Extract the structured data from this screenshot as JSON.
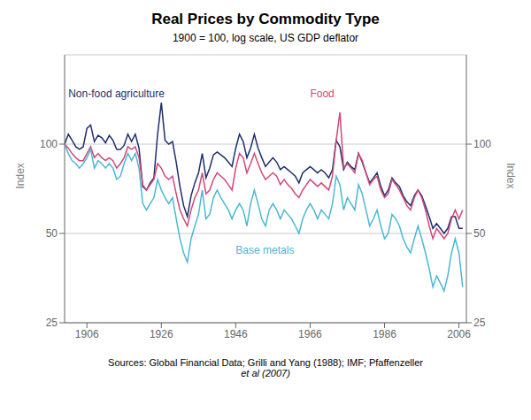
{
  "chart_data": {
    "type": "line",
    "title": "Real Prices by Commodity Type",
    "subtitle": "1900 = 100, log scale, US GDP deflator",
    "ylabel": "Index",
    "y2label": "Index",
    "source": [
      "Sources: Global Financial Data; Grilli and Yang (1988); IMF; Pfaffenzeller",
      "et al (2007)"
    ],
    "log": "y",
    "grid": "y",
    "ylim": [
      25,
      200
    ],
    "yticks": [
      25,
      50,
      100
    ],
    "y2lim": [
      25,
      200
    ],
    "y2ticks": [
      25,
      50,
      100
    ],
    "xlim": [
      1900,
      2008
    ],
    "xticks": [
      1906,
      1926,
      1946,
      1966,
      1986,
      2006
    ],
    "annotations": [
      {
        "text": "Non-food agriculture",
        "x": 1901,
        "y": 148,
        "color": "#1c2f6e"
      },
      {
        "text": "Food",
        "x": 1966,
        "y": 148,
        "color": "#d4477a"
      },
      {
        "text": "Base metals",
        "x": 1946,
        "y": 44,
        "color": "#4ab8d4"
      }
    ],
    "x": [
      1900,
      1901,
      1902,
      1903,
      1904,
      1905,
      1906,
      1907,
      1908,
      1909,
      1910,
      1911,
      1912,
      1913,
      1914,
      1915,
      1916,
      1917,
      1918,
      1919,
      1920,
      1921,
      1922,
      1923,
      1924,
      1925,
      1926,
      1927,
      1928,
      1929,
      1930,
      1931,
      1932,
      1933,
      1934,
      1935,
      1936,
      1937,
      1938,
      1939,
      1940,
      1941,
      1942,
      1943,
      1944,
      1945,
      1946,
      1947,
      1948,
      1949,
      1950,
      1951,
      1952,
      1953,
      1954,
      1955,
      1956,
      1957,
      1958,
      1959,
      1960,
      1961,
      1962,
      1963,
      1964,
      1965,
      1966,
      1967,
      1968,
      1969,
      1970,
      1971,
      1972,
      1973,
      1974,
      1975,
      1976,
      1977,
      1978,
      1979,
      1980,
      1981,
      1982,
      1983,
      1984,
      1985,
      1986,
      1987,
      1988,
      1989,
      1990,
      1991,
      1992,
      1993,
      1994,
      1995,
      1996,
      1997,
      1998,
      1999,
      2000,
      2001,
      2002,
      2003,
      2004,
      2005,
      2006,
      2007
    ],
    "series": [
      {
        "name": "Non-food agriculture",
        "color": "#1c2f6e",
        "values": [
          100,
          108,
          103,
          98,
          96,
          98,
          113,
          116,
          102,
          107,
          105,
          101,
          107,
          103,
          96,
          96,
          99,
          108,
          102,
          108,
          97,
          72,
          70,
          74,
          77,
          108,
          138,
          103,
          100,
          102,
          87,
          72,
          62,
          57,
          67,
          74,
          80,
          93,
          77,
          83,
          92,
          94,
          92,
          90,
          87,
          84,
          97,
          108,
          102,
          90,
          97,
          108,
          97,
          90,
          84,
          87,
          90,
          87,
          82,
          84,
          82,
          80,
          78,
          74,
          80,
          82,
          84,
          82,
          80,
          82,
          80,
          77,
          82,
          103,
          98,
          82,
          87,
          84,
          82,
          93,
          87,
          80,
          74,
          77,
          80,
          72,
          67,
          70,
          77,
          74,
          72,
          67,
          64,
          62,
          67,
          70,
          67,
          62,
          57,
          52,
          54,
          52,
          50,
          52,
          57,
          57,
          52,
          52
        ]
      },
      {
        "name": "Food",
        "color": "#d4477a",
        "values": [
          100,
          97,
          93,
          90,
          88,
          88,
          93,
          98,
          90,
          93,
          90,
          88,
          90,
          88,
          83,
          86,
          90,
          98,
          96,
          98,
          90,
          73,
          70,
          73,
          76,
          86,
          83,
          78,
          76,
          78,
          68,
          60,
          56,
          53,
          60,
          66,
          70,
          80,
          68,
          70,
          76,
          80,
          78,
          76,
          73,
          70,
          83,
          93,
          90,
          80,
          86,
          93,
          86,
          80,
          76,
          78,
          80,
          78,
          73,
          76,
          73,
          71,
          68,
          66,
          70,
          73,
          76,
          74,
          72,
          74,
          72,
          70,
          78,
          103,
          128,
          83,
          86,
          83,
          80,
          93,
          88,
          80,
          73,
          76,
          78,
          70,
          66,
          68,
          76,
          73,
          70,
          66,
          62,
          60,
          66,
          70,
          66,
          60,
          53,
          48,
          52,
          50,
          48,
          50,
          56,
          60,
          56,
          60
        ]
      },
      {
        "name": "Base metals",
        "color": "#4ab8d4",
        "values": [
          100,
          93,
          88,
          86,
          83,
          86,
          90,
          96,
          83,
          88,
          86,
          83,
          86,
          83,
          76,
          78,
          86,
          93,
          88,
          93,
          83,
          63,
          60,
          63,
          66,
          76,
          70,
          66,
          63,
          66,
          56,
          48,
          43,
          40,
          48,
          53,
          58,
          70,
          56,
          58,
          66,
          70,
          66,
          63,
          60,
          56,
          60,
          63,
          60,
          53,
          63,
          70,
          63,
          56,
          53,
          60,
          63,
          60,
          56,
          60,
          58,
          56,
          53,
          50,
          56,
          60,
          63,
          60,
          56,
          60,
          58,
          56,
          63,
          78,
          73,
          60,
          66,
          63,
          60,
          73,
          68,
          60,
          53,
          56,
          60,
          53,
          48,
          50,
          58,
          56,
          53,
          48,
          45,
          43,
          48,
          53,
          48,
          43,
          38,
          33,
          36,
          34,
          32,
          36,
          43,
          48,
          43,
          33
        ]
      }
    ]
  }
}
